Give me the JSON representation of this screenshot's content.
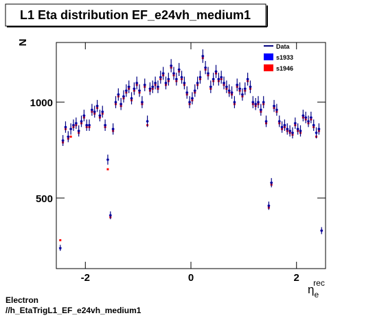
{
  "chart_data": {
    "type": "scatter",
    "title": "L1 Eta distribution EF_e24vh_medium1",
    "y_label": "N",
    "x_label": "η",
    "x_label_sub": "e",
    "x_label_sup": "rec",
    "annotations": [
      "Electron",
      "//h_EtaTrigL1_EF_e24vh_medium1"
    ],
    "legend": "top-right",
    "xlim": [
      -2.55,
      2.55
    ],
    "xticks": [
      -2,
      0,
      2
    ],
    "ylim": [
      132,
      1311
    ],
    "yticks": [
      500,
      1000
    ],
    "x": [
      -2.475,
      -2.425,
      -2.375,
      -2.325,
      -2.275,
      -2.225,
      -2.175,
      -2.125,
      -2.075,
      -2.025,
      -1.975,
      -1.925,
      -1.875,
      -1.825,
      -1.775,
      -1.725,
      -1.675,
      -1.625,
      -1.575,
      -1.525,
      -1.475,
      -1.425,
      -1.375,
      -1.325,
      -1.275,
      -1.225,
      -1.175,
      -1.125,
      -1.075,
      -1.025,
      -0.975,
      -0.925,
      -0.875,
      -0.825,
      -0.775,
      -0.725,
      -0.675,
      -0.625,
      -0.575,
      -0.525,
      -0.475,
      -0.425,
      -0.375,
      -0.325,
      -0.275,
      -0.225,
      -0.175,
      -0.125,
      -0.075,
      -0.025,
      0.025,
      0.075,
      0.125,
      0.175,
      0.225,
      0.275,
      0.325,
      0.375,
      0.425,
      0.475,
      0.525,
      0.575,
      0.625,
      0.675,
      0.725,
      0.775,
      0.825,
      0.875,
      0.925,
      0.975,
      1.025,
      1.075,
      1.125,
      1.175,
      1.225,
      1.275,
      1.325,
      1.375,
      1.425,
      1.475,
      1.525,
      1.575,
      1.625,
      1.675,
      1.725,
      1.775,
      1.825,
      1.875,
      1.925,
      1.975,
      2.025,
      2.075,
      2.125,
      2.175,
      2.225,
      2.275,
      2.325,
      2.375,
      2.425,
      2.475
    ],
    "series": [
      {
        "name": "s1946",
        "color": "#ff0000",
        "values": [
          280,
          790,
          860,
          810,
          820,
          870,
          880,
          840,
          890,
          920,
          870,
          870,
          950,
          940,
          970,
          920,
          940,
          870,
          650,
          400,
          850,
          990,
          1030,
          980,
          1020,
          1050,
          1070,
          1010,
          1060,
          1090,
          1050,
          990,
          1080,
          880,
          1060,
          1070,
          1090,
          1070,
          1120,
          1140,
          1090,
          1110,
          1180,
          1140,
          1110,
          1160,
          1120,
          1090,
          1040,
          990,
          1010,
          1050,
          1090,
          1120,
          1230,
          1170,
          1140,
          1070,
          1110,
          1150,
          1110,
          1120,
          1090,
          1070,
          1050,
          1040,
          990,
          1080,
          1060,
          1030,
          1060,
          1110,
          1070,
          990,
          980,
          990,
          950,
          990,
          890,
          450,
          570,
          970,
          950,
          890,
          860,
          870,
          850,
          840,
          830,
          880,
          850,
          840,
          920,
          910,
          890,
          910,
          870,
          820,
          850,
          330
        ]
      },
      {
        "name": "s1933",
        "color": "#0000ff",
        "values": [
          238,
          800,
          870,
          820,
          860,
          880,
          890,
          850,
          900,
          930,
          880,
          880,
          960,
          950,
          980,
          930,
          950,
          880,
          700,
          410,
          860,
          1000,
          1040,
          990,
          1030,
          1060,
          1080,
          1020,
          1070,
          1100,
          1060,
          1000,
          1090,
          900,
          1070,
          1080,
          1100,
          1080,
          1130,
          1150,
          1100,
          1120,
          1190,
          1150,
          1120,
          1170,
          1130,
          1100,
          1050,
          1000,
          1020,
          1060,
          1100,
          1130,
          1240,
          1180,
          1150,
          1080,
          1120,
          1160,
          1120,
          1130,
          1100,
          1080,
          1060,
          1050,
          1000,
          1090,
          1070,
          1040,
          1070,
          1120,
          1080,
          1000,
          990,
          1000,
          960,
          1000,
          900,
          460,
          580,
          980,
          960,
          900,
          870,
          880,
          860,
          850,
          840,
          890,
          860,
          850,
          930,
          920,
          900,
          920,
          880,
          840,
          860,
          330
        ]
      },
      {
        "name": "Data",
        "color": "#000080",
        "values": [
          240,
          800,
          870,
          820,
          860,
          880,
          890,
          850,
          900,
          930,
          880,
          880,
          960,
          950,
          980,
          930,
          950,
          880,
          700,
          410,
          860,
          1000,
          1040,
          990,
          1030,
          1060,
          1080,
          1020,
          1070,
          1100,
          1060,
          1000,
          1090,
          900,
          1070,
          1080,
          1100,
          1080,
          1130,
          1150,
          1100,
          1120,
          1190,
          1150,
          1120,
          1170,
          1130,
          1100,
          1050,
          1000,
          1020,
          1060,
          1100,
          1130,
          1240,
          1180,
          1150,
          1080,
          1120,
          1160,
          1120,
          1130,
          1100,
          1080,
          1060,
          1050,
          1000,
          1090,
          1070,
          1040,
          1070,
          1120,
          1080,
          1000,
          990,
          1000,
          960,
          1000,
          900,
          460,
          580,
          980,
          960,
          900,
          870,
          880,
          860,
          850,
          840,
          890,
          860,
          850,
          930,
          920,
          900,
          920,
          880,
          840,
          860,
          330
        ]
      }
    ]
  }
}
